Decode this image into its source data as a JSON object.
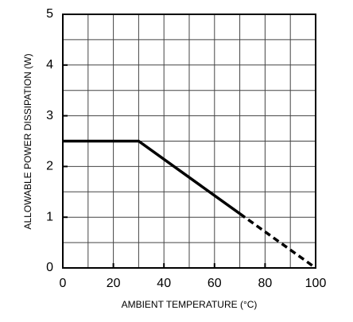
{
  "chart_data": {
    "type": "line",
    "x_label": "AMBIENT TEMPERATURE (°C)",
    "y_label": "ALLOWABLE POWER DISSIPATION (W)",
    "xlim": [
      0,
      100
    ],
    "ylim": [
      0,
      5
    ],
    "xticks": [
      0,
      20,
      40,
      60,
      80,
      100
    ],
    "yticks": [
      0,
      1,
      2,
      3,
      4,
      5
    ],
    "xgrid": [
      0,
      10,
      20,
      30,
      40,
      50,
      60,
      70,
      80,
      90,
      100
    ],
    "ygrid": [
      0,
      0.5,
      1,
      1.5,
      2,
      2.5,
      3,
      3.5,
      4,
      4.5,
      5
    ],
    "grid": true,
    "series": [
      {
        "color": "#000000",
        "style": "solid",
        "x": [
          0,
          30,
          70
        ],
        "values": [
          2.5,
          2.5,
          1.07
        ]
      },
      {
        "color": "#000000",
        "style": "dashed",
        "x": [
          70,
          100
        ],
        "values": [
          1.07,
          0
        ]
      }
    ]
  }
}
